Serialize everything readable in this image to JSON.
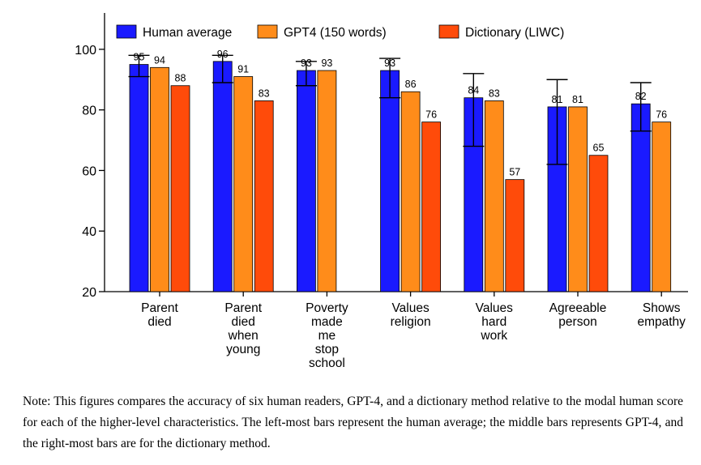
{
  "colors": {
    "human": "#1a1aff",
    "gpt4": "#ff8c1a",
    "dictionary": "#ff4b0a",
    "axis": "#000000"
  },
  "chart_data": {
    "type": "bar",
    "title": "",
    "xlabel": "",
    "ylabel": "",
    "ylim": [
      20,
      112
    ],
    "yticks": [
      20,
      40,
      60,
      80,
      100
    ],
    "grid": false,
    "legend_position": "top",
    "categories": [
      [
        "Parent",
        "died"
      ],
      [
        "Parent",
        "died",
        "when",
        "young"
      ],
      [
        "Poverty",
        "made",
        "me",
        "stop",
        "school"
      ],
      [
        "Values",
        "religion"
      ],
      [
        "Values",
        "hard",
        "work"
      ],
      [
        "Agreeable",
        "person"
      ],
      [
        "Shows",
        "empathy"
      ]
    ],
    "series": [
      {
        "name": "Human average",
        "color": "#1a1aff",
        "values": [
          95,
          96,
          93,
          93,
          84,
          81,
          82
        ],
        "labels": [
          "95",
          "96",
          "93",
          "93",
          "84",
          "81",
          "82"
        ],
        "error_low": [
          91,
          89,
          88,
          84,
          68,
          62,
          73
        ],
        "error_high": [
          98,
          98,
          96,
          97,
          92,
          90,
          89
        ]
      },
      {
        "name": "GPT4 (150 words)",
        "color": "#ff8c1a",
        "values": [
          94,
          91,
          93,
          86,
          83,
          81,
          76
        ],
        "labels": [
          "94",
          "91",
          "93",
          "86",
          "83",
          "81",
          "76"
        ]
      },
      {
        "name": "Dictionary (LIWC)",
        "color": "#ff4b0a",
        "values": [
          88,
          83,
          null,
          76,
          57,
          65,
          null
        ],
        "labels": [
          "88",
          "83",
          "",
          "76",
          "57",
          "65",
          ""
        ]
      }
    ]
  },
  "note": "Note: This figures compares the accuracy of six human readers, GPT-4, and a dictionary method relative to the modal human score for each of the higher-level characteristics. The left-most bars represent the human average; the middle bars represents GPT-4, and the right-most bars are for the dictionary method."
}
